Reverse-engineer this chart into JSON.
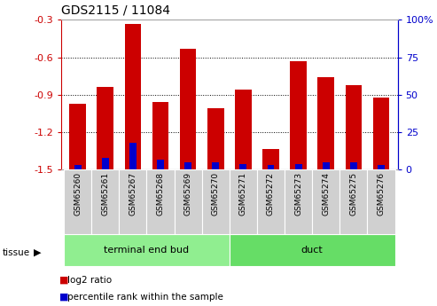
{
  "title": "GDS2115 / 11084",
  "samples": [
    "GSM65260",
    "GSM65261",
    "GSM65267",
    "GSM65268",
    "GSM65269",
    "GSM65270",
    "GSM65271",
    "GSM65272",
    "GSM65273",
    "GSM65274",
    "GSM65275",
    "GSM65276"
  ],
  "log2_ratio": [
    -0.97,
    -0.84,
    -0.33,
    -0.96,
    -0.53,
    -1.01,
    -0.86,
    -1.33,
    -0.63,
    -0.76,
    -0.82,
    -0.92
  ],
  "percentile_rank": [
    3,
    8,
    18,
    7,
    5,
    5,
    4,
    3,
    4,
    5,
    5,
    3
  ],
  "tissue_groups": [
    {
      "label": "terminal end bud",
      "start": 0,
      "end": 6,
      "color": "#90ee90"
    },
    {
      "label": "duct",
      "start": 6,
      "end": 12,
      "color": "#66dd66"
    }
  ],
  "ylim": [
    -1.5,
    -0.3
  ],
  "yticks": [
    -1.5,
    -1.2,
    -0.9,
    -0.6,
    -0.3
  ],
  "right_yticks": [
    0,
    25,
    50,
    75,
    100
  ],
  "right_ylabels": [
    "0",
    "25",
    "50",
    "75",
    "100%"
  ],
  "bar_color_red": "#cc0000",
  "bar_color_blue": "#0000cc",
  "axis_color_red": "#cc0000",
  "axis_color_blue": "#0000cc",
  "bg_color": "#ffffff",
  "grid_color": "#000000",
  "bar_width": 0.6,
  "blue_bar_width": 0.25,
  "tick_label_bg": "#d0d0d0"
}
